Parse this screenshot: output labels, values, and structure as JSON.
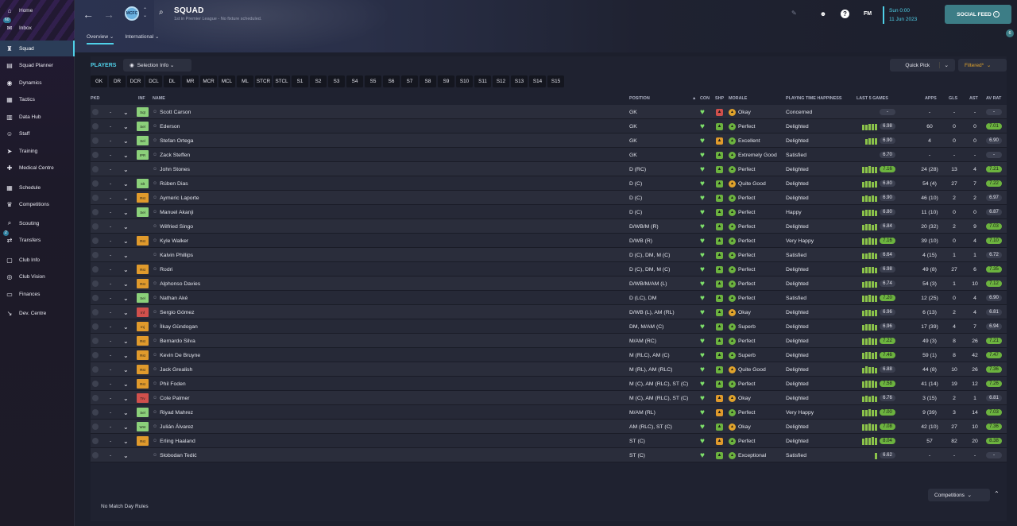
{
  "sidebar": {
    "items": [
      {
        "label": "Home",
        "icon": "home-icon",
        "glyph": "⌂"
      },
      {
        "label": "Inbox",
        "icon": "inbox-icon",
        "glyph": "✉",
        "badge": "60"
      },
      {
        "label": "Squad",
        "icon": "squad-icon",
        "glyph": "♜",
        "active": true
      },
      {
        "label": "Squad Planner",
        "icon": "planner-icon",
        "glyph": "▤"
      },
      {
        "label": "Dynamics",
        "icon": "dynamics-icon",
        "glyph": "◉"
      },
      {
        "label": "Tactics",
        "icon": "tactics-icon",
        "glyph": "▦"
      },
      {
        "label": "Data Hub",
        "icon": "datahub-icon",
        "glyph": "▥"
      },
      {
        "label": "Staff",
        "icon": "staff-icon",
        "glyph": "☺"
      },
      {
        "label": "Training",
        "icon": "training-icon",
        "glyph": "➤"
      },
      {
        "label": "Medical Centre",
        "icon": "medical-icon",
        "glyph": "✚"
      },
      {
        "label": "Schedule",
        "icon": "schedule-icon",
        "glyph": "▦"
      },
      {
        "label": "Competitions",
        "icon": "trophy-icon",
        "glyph": "♛"
      },
      {
        "label": "Scouting",
        "icon": "scouting-icon",
        "glyph": "⌕"
      },
      {
        "label": "Transfers",
        "icon": "transfers-icon",
        "glyph": "⇄",
        "badge": "2"
      },
      {
        "label": "Club Info",
        "icon": "clubinfo-icon",
        "glyph": "▢"
      },
      {
        "label": "Club Vision",
        "icon": "vision-icon",
        "glyph": "◎"
      },
      {
        "label": "Finances",
        "icon": "finances-icon",
        "glyph": "▭"
      },
      {
        "label": "Dev. Centre",
        "icon": "devcentre-icon",
        "glyph": "↘"
      }
    ]
  },
  "header": {
    "title": "SQUAD",
    "subtitle": "1st in Premier League - No fixture scheduled.",
    "crest_text": "MCFC",
    "tabs": [
      "Overview",
      "International"
    ],
    "time": "Sun 0:00",
    "date": "11 Jun 2023",
    "social_feed": "SOCIAL FEED",
    "fm_label": "FM",
    "notif_badge": "6"
  },
  "toolbar": {
    "players_label": "PLAYERS",
    "selection_info": "Selection Info",
    "quick_pick": "Quick Pick",
    "filtered": "Filtered*"
  },
  "positions": [
    "GK",
    "DR",
    "DCR",
    "DCL",
    "DL",
    "MR",
    "MCR",
    "MCL",
    "ML",
    "STCR",
    "STCL",
    "S1",
    "S2",
    "S3",
    "S4",
    "S5",
    "S6",
    "S7",
    "S8",
    "S9",
    "S10",
    "S11",
    "S12",
    "S13",
    "S14",
    "S15"
  ],
  "columns": {
    "pkd": "PKD",
    "inf": "INF",
    "name": "NAME",
    "position": "POSITION",
    "con": "CON",
    "shp": "SHP",
    "morale": "MORALE",
    "pth": "PLAYING TIME HAPPINESS",
    "last5": "LAST 5 GAMES",
    "apps": "APPS",
    "gls": "GLS",
    "ast": "AST",
    "avrat": "AV RAT"
  },
  "colors": {
    "accent": "#4fd0e8",
    "green": "#6cb33f",
    "heart": "#7ee06a",
    "orange": "#e09a2c",
    "red": "#d0504c"
  },
  "players": [
    {
      "name": "Scott Carson",
      "inf": "Sqt",
      "infc": "#8bd07a",
      "pos": "GK",
      "shp": "#d0504c",
      "morale": "Okay",
      "mc": "#e0a32c",
      "pth": "Concerned",
      "last5": [],
      "rating": "-",
      "rg": false,
      "apps": "-",
      "gls": "-",
      "ast": "-",
      "avrat": "-",
      "ag": false
    },
    {
      "name": "Ederson",
      "inf": "Sel",
      "infc": "#8bd07a",
      "pos": "GK",
      "shp": "#6cb33f",
      "morale": "Perfect",
      "mc": "#6cb33f",
      "pth": "Delighted",
      "last5": [
        4,
        4,
        5,
        5,
        5
      ],
      "rating": "6.98",
      "rg": false,
      "apps": "60",
      "gls": "0",
      "ast": "0",
      "avrat": "7.01",
      "ag": true
    },
    {
      "name": "Stefan Ortega",
      "inf": "Sel",
      "infc": "#8bd07a",
      "pos": "GK",
      "shp": "#e09a2c",
      "morale": "Excellent",
      "mc": "#6cb33f",
      "pth": "Delighted",
      "last5": [
        4,
        5,
        5,
        5
      ],
      "rating": "6.90",
      "rg": false,
      "apps": "4",
      "gls": "0",
      "ast": "0",
      "avrat": "6.90",
      "ag": false
    },
    {
      "name": "Zack Steffen",
      "inf": "IPR",
      "infc": "#8bd07a",
      "pos": "GK",
      "shp": "#6cb33f",
      "morale": "Extremely Good",
      "mc": "#6cb33f",
      "pth": "Satisfied",
      "last5": [],
      "rating": "6.70",
      "rg": false,
      "apps": "-",
      "gls": "-",
      "ast": "-",
      "avrat": "-",
      "ag": false
    },
    {
      "name": "John Stones",
      "inf": "",
      "infc": "",
      "pos": "D (RC)",
      "shp": "#6cb33f",
      "morale": "Perfect",
      "mc": "#6cb33f",
      "pth": "Delighted",
      "last5": [
        5,
        5,
        6,
        5,
        5
      ],
      "rating": "7.16",
      "rg": true,
      "apps": "24 (28)",
      "gls": "13",
      "ast": "4",
      "avrat": "7.21",
      "ag": true
    },
    {
      "name": "Rúben Dias",
      "inf": "Slt",
      "infc": "#8bd07a",
      "pos": "D (C)",
      "shp": "#6cb33f",
      "morale": "Quite Good",
      "mc": "#e0a32c",
      "pth": "Delighted",
      "last5": [
        4,
        5,
        5,
        4,
        5
      ],
      "rating": "6.80",
      "rg": false,
      "apps": "54 (4)",
      "gls": "27",
      "ast": "7",
      "avrat": "7.22",
      "ag": true
    },
    {
      "name": "Aymeric Laporte",
      "inf": "Rst",
      "infc": "#e09a2c",
      "pos": "D (C)",
      "shp": "#6cb33f",
      "morale": "Perfect",
      "mc": "#6cb33f",
      "pth": "Delighted",
      "last5": [
        4,
        5,
        4,
        5,
        4
      ],
      "rating": "6.90",
      "rg": false,
      "apps": "46 (10)",
      "gls": "2",
      "ast": "2",
      "avrat": "6.97",
      "ag": false
    },
    {
      "name": "Manuel Akanji",
      "inf": "Sel",
      "infc": "#8bd07a",
      "pos": "D (C)",
      "shp": "#6cb33f",
      "morale": "Perfect",
      "mc": "#6cb33f",
      "pth": "Happy",
      "last5": [
        4,
        5,
        5,
        5,
        4
      ],
      "rating": "6.80",
      "rg": false,
      "apps": "11 (10)",
      "gls": "0",
      "ast": "0",
      "avrat": "6.87",
      "ag": false
    },
    {
      "name": "Wilfried Singo",
      "inf": "",
      "infc": "",
      "pos": "D/WB/M (R)",
      "shp": "#6cb33f",
      "morale": "Perfect",
      "mc": "#6cb33f",
      "pth": "Delighted",
      "last5": [
        4,
        5,
        5,
        4,
        5
      ],
      "rating": "6.84",
      "rg": false,
      "apps": "20 (32)",
      "gls": "2",
      "ast": "9",
      "avrat": "7.03",
      "ag": true
    },
    {
      "name": "Kyle Walker",
      "inf": "Rst",
      "infc": "#e09a2c",
      "pos": "D/WB (R)",
      "shp": "#6cb33f",
      "morale": "Perfect",
      "mc": "#6cb33f",
      "pth": "Very Happy",
      "last5": [
        5,
        5,
        6,
        5,
        5
      ],
      "rating": "7.16",
      "rg": true,
      "apps": "39 (10)",
      "gls": "0",
      "ast": "4",
      "avrat": "7.10",
      "ag": true
    },
    {
      "name": "Kalvin Phillips",
      "inf": "",
      "infc": "",
      "pos": "D (C), DM, M (C)",
      "shp": "#6cb33f",
      "morale": "Perfect",
      "mc": "#6cb33f",
      "pth": "Satisfied",
      "last5": [
        4,
        4,
        5,
        5,
        4
      ],
      "rating": "6.64",
      "rg": false,
      "apps": "4 (15)",
      "gls": "1",
      "ast": "1",
      "avrat": "6.72",
      "ag": false
    },
    {
      "name": "Rodri",
      "inf": "Rst",
      "infc": "#e09a2c",
      "pos": "D (C), DM, M (C)",
      "shp": "#6cb33f",
      "morale": "Perfect",
      "mc": "#6cb33f",
      "pth": "Delighted",
      "last5": [
        4,
        5,
        5,
        5,
        4
      ],
      "rating": "6.98",
      "rg": false,
      "apps": "49 (8)",
      "gls": "27",
      "ast": "6",
      "avrat": "7.35",
      "ag": true
    },
    {
      "name": "Alphonso Davies",
      "inf": "Rst",
      "infc": "#e09a2c",
      "pos": "D/WB/M/AM (L)",
      "shp": "#6cb33f",
      "morale": "Perfect",
      "mc": "#6cb33f",
      "pth": "Delighted",
      "last5": [
        4,
        5,
        5,
        5,
        4
      ],
      "rating": "6.74",
      "rg": false,
      "apps": "54 (3)",
      "gls": "1",
      "ast": "10",
      "avrat": "7.12",
      "ag": true
    },
    {
      "name": "Nathan Aké",
      "inf": "Sel",
      "infc": "#8bd07a",
      "pos": "D (LC), DM",
      "shp": "#6cb33f",
      "morale": "Perfect",
      "mc": "#6cb33f",
      "pth": "Satisfied",
      "last5": [
        5,
        5,
        6,
        5,
        5
      ],
      "rating": "7.20",
      "rg": true,
      "apps": "12 (25)",
      "gls": "0",
      "ast": "4",
      "avrat": "6.90",
      "ag": false
    },
    {
      "name": "Sergio Gómez",
      "inf": "Inf",
      "infc": "#d0504c",
      "pos": "D/WB (L), AM (RL)",
      "shp": "#6cb33f",
      "morale": "Okay",
      "mc": "#e0a32c",
      "pth": "Delighted",
      "last5": [
        4,
        5,
        5,
        4,
        5
      ],
      "rating": "6.96",
      "rg": false,
      "apps": "6 (13)",
      "gls": "2",
      "ast": "4",
      "avrat": "6.81",
      "ag": false
    },
    {
      "name": "İlkay Gündogan",
      "inf": "Inj",
      "infc": "#e09a2c",
      "pos": "DM, M/AM (C)",
      "shp": "#6cb33f",
      "morale": "Superb",
      "mc": "#6cb33f",
      "pth": "Delighted",
      "last5": [
        4,
        5,
        5,
        5,
        4
      ],
      "rating": "6.96",
      "rg": false,
      "apps": "17 (39)",
      "gls": "4",
      "ast": "7",
      "avrat": "6.94",
      "ag": false
    },
    {
      "name": "Bernardo Silva",
      "inf": "Rst",
      "infc": "#e09a2c",
      "pos": "M/AM (RC)",
      "shp": "#6cb33f",
      "morale": "Perfect",
      "mc": "#6cb33f",
      "pth": "Delighted",
      "last5": [
        5,
        5,
        6,
        5,
        5
      ],
      "rating": "7.22",
      "rg": true,
      "apps": "49 (3)",
      "gls": "8",
      "ast": "26",
      "avrat": "7.21",
      "ag": true
    },
    {
      "name": "Kevin De Bruyne",
      "inf": "Rst",
      "infc": "#e09a2c",
      "pos": "M (RLC), AM (C)",
      "shp": "#6cb33f",
      "morale": "Superb",
      "mc": "#6cb33f",
      "pth": "Delighted",
      "last5": [
        5,
        6,
        6,
        5,
        6
      ],
      "rating": "7.46",
      "rg": true,
      "apps": "59 (1)",
      "gls": "8",
      "ast": "42",
      "avrat": "7.47",
      "ag": true
    },
    {
      "name": "Jack Grealish",
      "inf": "Rst",
      "infc": "#e09a2c",
      "pos": "M (RL), AM (RLC)",
      "shp": "#6cb33f",
      "morale": "Quite Good",
      "mc": "#e0a32c",
      "pth": "Delighted",
      "last5": [
        4,
        6,
        5,
        5,
        4
      ],
      "rating": "6.88",
      "rg": false,
      "apps": "44 (8)",
      "gls": "10",
      "ast": "26",
      "avrat": "7.36",
      "ag": true
    },
    {
      "name": "Phil Foden",
      "inf": "Rst",
      "infc": "#e09a2c",
      "pos": "M (C), AM (RLC), ST (C)",
      "shp": "#6cb33f",
      "morale": "Perfect",
      "mc": "#6cb33f",
      "pth": "Delighted",
      "last5": [
        5,
        6,
        6,
        6,
        5
      ],
      "rating": "7.58",
      "rg": true,
      "apps": "41 (14)",
      "gls": "19",
      "ast": "12",
      "avrat": "7.26",
      "ag": true
    },
    {
      "name": "Cole Palmer",
      "inf": "Trv",
      "infc": "#d0504c",
      "pos": "M (C), AM (RLC), ST (C)",
      "shp": "#e09a2c",
      "morale": "Okay",
      "mc": "#e0a32c",
      "pth": "Delighted",
      "last5": [
        4,
        5,
        4,
        5,
        4
      ],
      "rating": "6.76",
      "rg": false,
      "apps": "3 (15)",
      "gls": "2",
      "ast": "1",
      "avrat": "6.81",
      "ag": false
    },
    {
      "name": "Riyad Mahrez",
      "inf": "Sel",
      "infc": "#8bd07a",
      "pos": "M/AM (RL)",
      "shp": "#e09a2c",
      "morale": "Perfect",
      "mc": "#6cb33f",
      "pth": "Very Happy",
      "last5": [
        5,
        5,
        6,
        5,
        5
      ],
      "rating": "7.00",
      "rg": true,
      "apps": "9 (39)",
      "gls": "3",
      "ast": "14",
      "avrat": "7.03",
      "ag": true
    },
    {
      "name": "Julián Álvarez",
      "inf": "Wnt",
      "infc": "#8bd07a",
      "pos": "AM (RLC), ST (C)",
      "shp": "#6cb33f",
      "morale": "Okay",
      "mc": "#e0a32c",
      "pth": "Delighted",
      "last5": [
        5,
        5,
        6,
        5,
        5
      ],
      "rating": "7.08",
      "rg": true,
      "apps": "42 (10)",
      "gls": "27",
      "ast": "10",
      "avrat": "7.36",
      "ag": true
    },
    {
      "name": "Erling Haaland",
      "inf": "Rst",
      "infc": "#e09a2c",
      "pos": "ST (C)",
      "shp": "#e09a2c",
      "morale": "Perfect",
      "mc": "#6cb33f",
      "pth": "Delighted",
      "last5": [
        5,
        6,
        6,
        7,
        6
      ],
      "rating": "8.04",
      "rg": true,
      "apps": "57",
      "gls": "82",
      "ast": "20",
      "avrat": "8.38",
      "ag": true
    },
    {
      "name": "Slobodan Tedić",
      "inf": "",
      "infc": "",
      "pos": "ST (C)",
      "shp": "#6cb33f",
      "morale": "Exceptional",
      "mc": "#6cb33f",
      "pth": "Satisfied",
      "last5": [
        5
      ],
      "rating": "6.62",
      "rg": false,
      "apps": "-",
      "gls": "-",
      "ast": "-",
      "avrat": "-",
      "ag": false
    }
  ],
  "footer": {
    "rules": "No Match Day Rules",
    "competitions": "Competitions"
  }
}
